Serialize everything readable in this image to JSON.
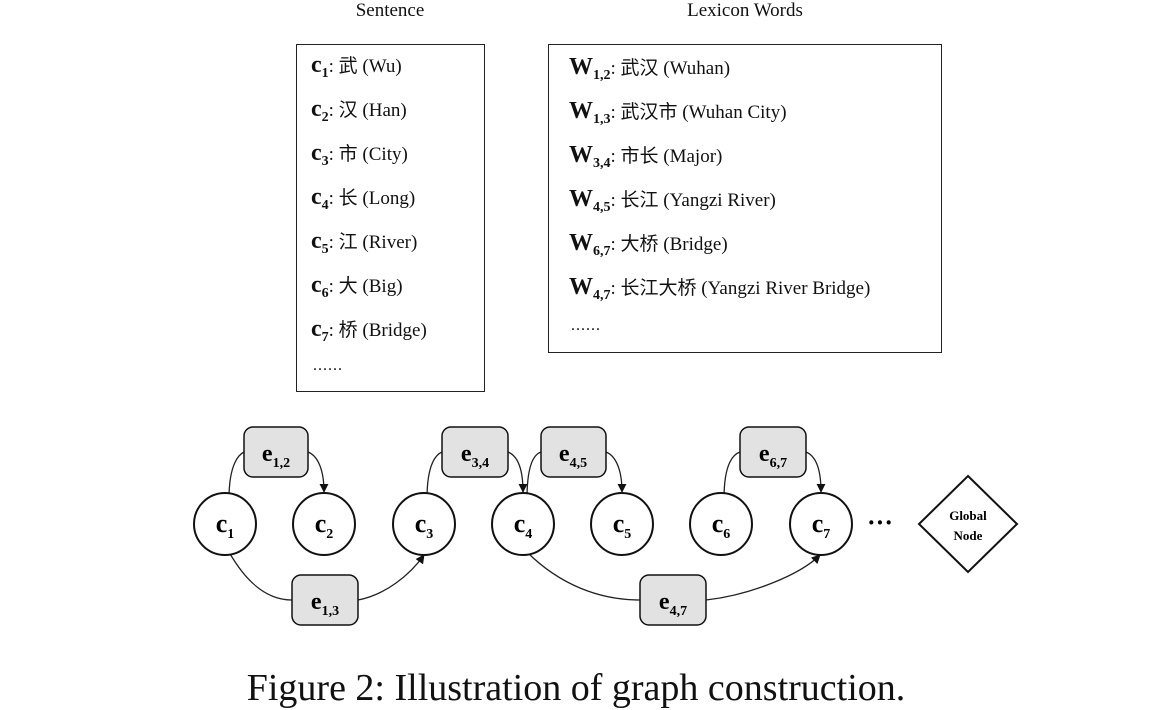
{
  "sentence": {
    "title": "Sentence",
    "chars": [
      {
        "sym": "c",
        "sub": "1",
        "text": ": 武 (Wu)"
      },
      {
        "sym": "c",
        "sub": "2",
        "text": ": 汉 (Han)"
      },
      {
        "sym": "c",
        "sub": "3",
        "text": ": 市 (City)"
      },
      {
        "sym": "c",
        "sub": "4",
        "text": ": 长 (Long)"
      },
      {
        "sym": "c",
        "sub": "5",
        "text": ": 江 (River)"
      },
      {
        "sym": "c",
        "sub": "6",
        "text": ": 大 (Big)"
      },
      {
        "sym": "c",
        "sub": "7",
        "text": ": 桥 (Bridge)"
      }
    ],
    "ellipsis": "......"
  },
  "lexicon": {
    "title": "Lexicon Words",
    "words": [
      {
        "sym": "W",
        "sub": "1,2",
        "text": ": 武汉 (Wuhan)"
      },
      {
        "sym": "W",
        "sub": "1,3",
        "text": ": 武汉市 (Wuhan City)"
      },
      {
        "sym": "W",
        "sub": "3,4",
        "text": ": 市长 (Major)"
      },
      {
        "sym": "W",
        "sub": "4,5",
        "text": ": 长江 (Yangzi River)"
      },
      {
        "sym": "W",
        "sub": "6,7",
        "text": ": 大桥 (Bridge)"
      },
      {
        "sym": "W",
        "sub": "4,7",
        "text": ": 长江大桥 (Yangzi River Bridge)"
      }
    ],
    "ellipsis": "......"
  },
  "graph": {
    "char_nodes": [
      {
        "sym": "c",
        "sub": "1"
      },
      {
        "sym": "c",
        "sub": "2"
      },
      {
        "sym": "c",
        "sub": "3"
      },
      {
        "sym": "c",
        "sub": "4"
      },
      {
        "sym": "c",
        "sub": "5"
      },
      {
        "sym": "c",
        "sub": "6"
      },
      {
        "sym": "c",
        "sub": "7"
      }
    ],
    "edge_nodes": [
      {
        "sym": "e",
        "sub": "1,2"
      },
      {
        "sym": "e",
        "sub": "3,4"
      },
      {
        "sym": "e",
        "sub": "4,5"
      },
      {
        "sym": "e",
        "sub": "6,7"
      },
      {
        "sym": "e",
        "sub": "1,3"
      },
      {
        "sym": "e",
        "sub": "4,7"
      }
    ],
    "ellipsis": "···",
    "global_node": {
      "line1": "Global",
      "line2": "Node"
    }
  },
  "caption": "Figure 2: Illustration of graph construction."
}
